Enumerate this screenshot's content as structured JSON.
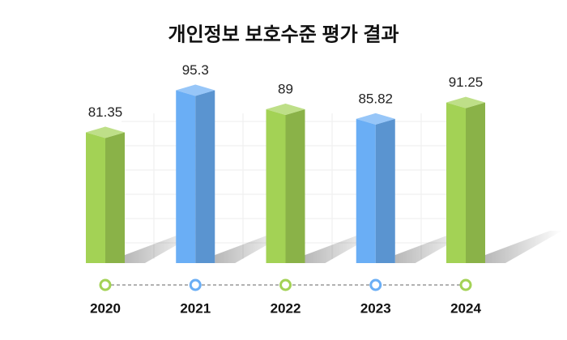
{
  "chart_data": {
    "type": "bar3d",
    "title": "개인정보 보호수준 평가 결과",
    "categories": [
      "2020",
      "2021",
      "2022",
      "2023",
      "2024"
    ],
    "values": [
      81.35,
      95.3,
      89,
      85.82,
      91.25
    ],
    "colors": [
      "#a3d255",
      "#6aaef5",
      "#a3d255",
      "#6aaef5",
      "#a3d255"
    ],
    "ylim": [
      38,
      100
    ]
  }
}
